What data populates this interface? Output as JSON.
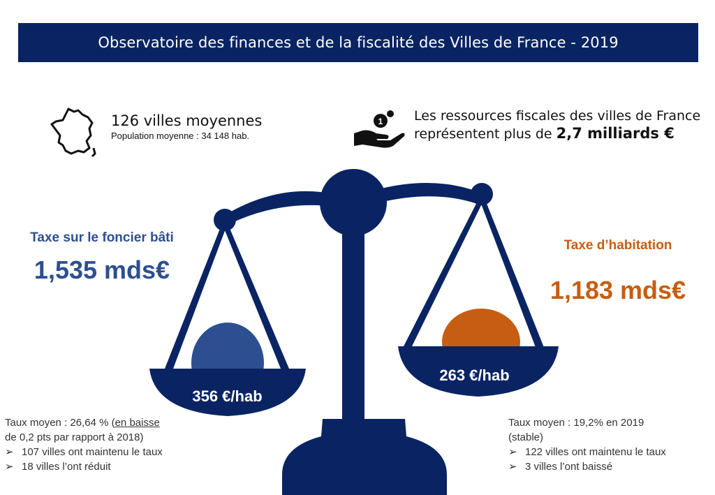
{
  "header": {
    "title": "Observatoire des finances et de la fiscalité des Villes de France - 2019"
  },
  "villes": {
    "count_text": "126 villes moyennes",
    "population_text": "Population moyenne : 34 148 hab."
  },
  "ressources": {
    "prefix": "Les ",
    "highlight": "ressources fiscales",
    "middle": " des villes de France",
    "line2": "représentent plus de ",
    "amount": "2,7 milliards €"
  },
  "foncier": {
    "label": "Taxe sur le foncier bâti",
    "value": "1,535 mds€",
    "per_hab": "356 €/hab",
    "note_line1a": "Taux moyen : 26,64 % (",
    "note_line1b": "en baisse",
    "note_line2": "de 0,2 pts par rapport à 2018)",
    "bullets": [
      "107 villes ont maintenu le taux",
      "18 villes l’ont réduit"
    ]
  },
  "habitation": {
    "label": "Taxe d’habitation",
    "value": "1,183 mds€",
    "per_hab": "263 €/hab",
    "note_line1": "Taux moyen : 19,2% en 2019",
    "note_line2": "(stable)",
    "bullets": [
      "122 villes ont maintenu le taux",
      "3 villes l’ont baissé"
    ]
  },
  "colors": {
    "navy": "#0a2463",
    "blue": "#2d4f91",
    "orange": "#c75d12"
  },
  "icons": {
    "bullet": "➢",
    "map": "france-map-icon",
    "hand": "hand-coins-icon"
  }
}
